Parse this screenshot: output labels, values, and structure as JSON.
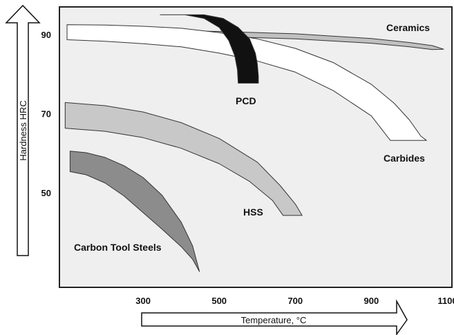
{
  "chart_data": {
    "type": "area",
    "title": "",
    "xlabel": "Temperature, °C",
    "ylabel": "Hardness HRC",
    "x_ticks": [
      300,
      500,
      700,
      900,
      1100
    ],
    "y_ticks": [
      50,
      70,
      90
    ],
    "xlim": [
      80,
      1110
    ],
    "ylim": [
      26,
      97
    ],
    "grid": false,
    "series": [
      {
        "name": "Ceramics",
        "color": "#c0c0c0",
        "upper": [
          [
            100,
            91.2
          ],
          [
            300,
            91.1
          ],
          [
            500,
            90.8
          ],
          [
            700,
            90.2
          ],
          [
            900,
            89.0
          ],
          [
            1000,
            88.0
          ],
          [
            1060,
            87.2
          ],
          [
            1090,
            86.3
          ]
        ],
        "lower": [
          [
            100,
            89.8
          ],
          [
            300,
            89.8
          ],
          [
            500,
            89.5
          ],
          [
            700,
            88.9
          ],
          [
            900,
            87.8
          ],
          [
            1000,
            86.9
          ],
          [
            1060,
            86.2
          ],
          [
            1090,
            86.3
          ]
        ]
      },
      {
        "name": "Carbides",
        "color": "#ffffff",
        "upper": [
          [
            100,
            92.5
          ],
          [
            200,
            92.4
          ],
          [
            300,
            92.1
          ],
          [
            400,
            91.6
          ],
          [
            500,
            90.5
          ],
          [
            600,
            88.9
          ],
          [
            700,
            86.5
          ],
          [
            800,
            82.9
          ],
          [
            900,
            77.4
          ],
          [
            960,
            72.6
          ],
          [
            1000,
            68.4
          ],
          [
            1030,
            64.3
          ],
          [
            1045,
            63.2
          ]
        ],
        "lower": [
          [
            100,
            88.7
          ],
          [
            200,
            88.3
          ],
          [
            300,
            87.7
          ],
          [
            400,
            86.9
          ],
          [
            500,
            85.3
          ],
          [
            600,
            83.3
          ],
          [
            700,
            80.5
          ],
          [
            800,
            75.8
          ],
          [
            900,
            69.4
          ],
          [
            950,
            63.2
          ],
          [
            1045,
            63.2
          ]
        ]
      },
      {
        "name": "PCD",
        "color": "#111111",
        "upper": [
          [
            380,
            95.0
          ],
          [
            460,
            95.0
          ],
          [
            510,
            94.1
          ],
          [
            550,
            91.8
          ],
          [
            580,
            88.9
          ],
          [
            595,
            85.3
          ],
          [
            600,
            82.7
          ],
          [
            603,
            79.5
          ],
          [
            603,
            77.7
          ]
        ],
        "lower": [
          [
            345,
            95.0
          ],
          [
            410,
            95.0
          ],
          [
            460,
            94.1
          ],
          [
            500,
            91.8
          ],
          [
            525,
            88.5
          ],
          [
            541,
            84.6
          ],
          [
            548,
            81.1
          ],
          [
            550,
            77.7
          ],
          [
            603,
            77.7
          ]
        ]
      },
      {
        "name": "HSS",
        "color": "#c8c8c8",
        "upper": [
          [
            95,
            72.8
          ],
          [
            200,
            72.0
          ],
          [
            300,
            70.4
          ],
          [
            400,
            67.7
          ],
          [
            500,
            63.7
          ],
          [
            600,
            57.7
          ],
          [
            660,
            51.8
          ],
          [
            700,
            47.1
          ],
          [
            718,
            44.2
          ]
        ],
        "lower": [
          [
            95,
            66.3
          ],
          [
            200,
            65.5
          ],
          [
            300,
            63.9
          ],
          [
            400,
            61.2
          ],
          [
            500,
            57.3
          ],
          [
            580,
            52.8
          ],
          [
            640,
            48.0
          ],
          [
            668,
            44.2
          ],
          [
            718,
            44.2
          ]
        ]
      },
      {
        "name": "Carbon Tool Steels",
        "color": "#8c8c8c",
        "upper": [
          [
            108,
            60.5
          ],
          [
            150,
            60.1
          ],
          [
            200,
            58.9
          ],
          [
            250,
            56.8
          ],
          [
            300,
            53.8
          ],
          [
            350,
            49.3
          ],
          [
            400,
            42.5
          ],
          [
            430,
            36.5
          ],
          [
            448,
            30.0
          ]
        ],
        "lower": [
          [
            108,
            55.3
          ],
          [
            150,
            54.5
          ],
          [
            200,
            52.4
          ],
          [
            250,
            49.1
          ],
          [
            300,
            44.9
          ],
          [
            350,
            40.7
          ],
          [
            400,
            36.3
          ],
          [
            430,
            33.1
          ],
          [
            448,
            30.0
          ]
        ]
      }
    ]
  }
}
